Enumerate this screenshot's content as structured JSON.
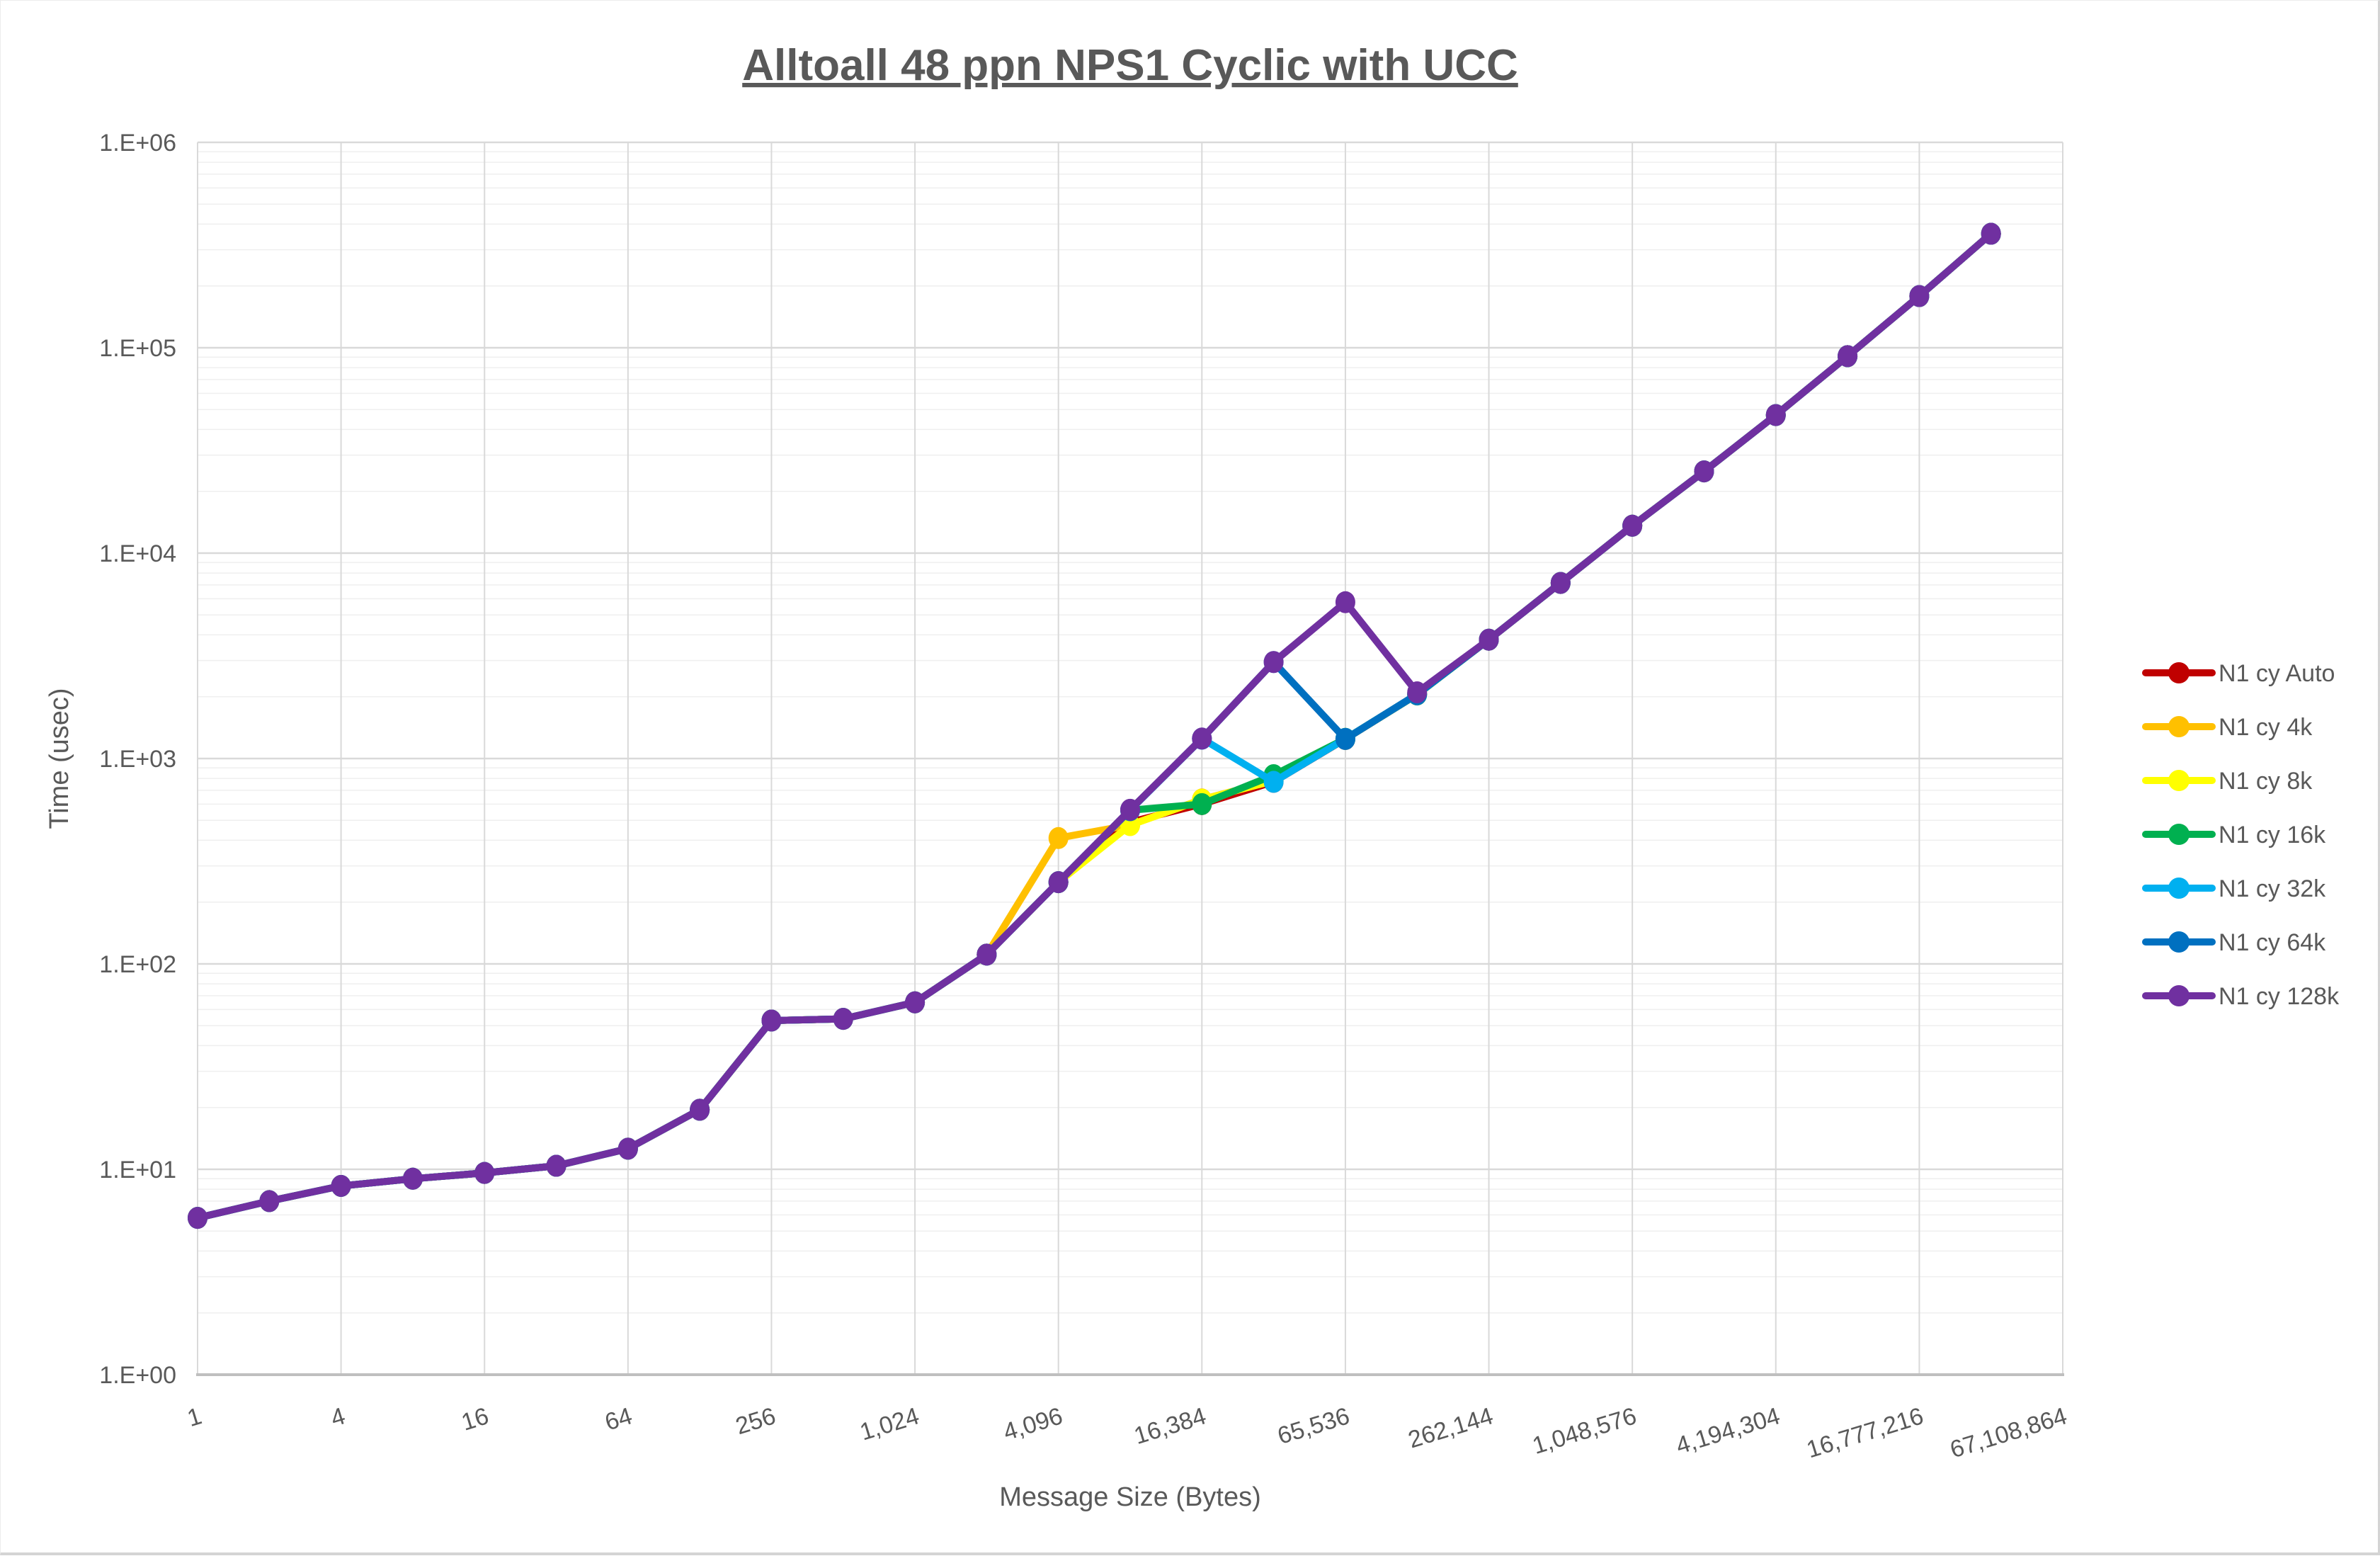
{
  "title": "Alltoall 48 ppn NPS1 Cyclic with UCC",
  "y_axis": {
    "title": "Time (usec)",
    "tick_labels": [
      "1.E+00",
      "1.E+01",
      "1.E+02",
      "1.E+03",
      "1.E+04",
      "1.E+05",
      "1.E+06"
    ]
  },
  "x_axis": {
    "title": "Message Size (Bytes)",
    "tick_labels": [
      "1",
      "4",
      "16",
      "64",
      "256",
      "1,024",
      "4,096",
      "16,384",
      "65,536",
      "262,144",
      "1,048,576",
      "4,194,304",
      "16,777,216",
      "67,108,864"
    ]
  },
  "legend": [
    {
      "label": "N1 cy Auto",
      "color": "#C00000"
    },
    {
      "label": "N1 cy 4k",
      "color": "#FFC000"
    },
    {
      "label": "N1 cy 8k",
      "color": "#FFFF00"
    },
    {
      "label": "N1 cy 16k",
      "color": "#00B050"
    },
    {
      "label": "N1 cy 32k",
      "color": "#00B0F0"
    },
    {
      "label": "N1 cy 64k",
      "color": "#0070C0"
    },
    {
      "label": "N1 cy 128k",
      "color": "#7030A0"
    }
  ],
  "colors": {
    "text": "#595959",
    "grid_major": "#d9d9d9",
    "grid_minor": "#efefef",
    "axis_line": "#bfbfbf"
  },
  "chart_data": {
    "type": "line",
    "title": "Alltoall 48 ppn NPS1 Cyclic with UCC",
    "xlabel": "Message Size (Bytes)",
    "ylabel": "Time (usec)",
    "x_scale": "log2-category",
    "y_scale": "log10",
    "ylim": [
      1,
      1000000
    ],
    "x_axis_last_category": 67108864,
    "grid": "major-and-log-minor",
    "legend_position": "right-outside",
    "sizes": [
      1,
      2,
      4,
      8,
      16,
      32,
      64,
      128,
      256,
      512,
      1024,
      2048,
      4096,
      8192,
      16384,
      32768,
      65536,
      131072,
      262144,
      524288,
      1048576,
      2097152,
      4194304,
      8388608,
      16777216,
      33554432
    ],
    "series": [
      {
        "name": "N1 cy Auto",
        "color": "#C00000",
        "values": [
          5.8,
          7,
          8.3,
          9,
          9.6,
          10.4,
          12.6,
          19.5,
          53,
          54,
          65,
          111,
          250,
          490,
          600,
          770,
          1245,
          2050,
          3790,
          7160,
          13600,
          25000,
          47000,
          91000,
          178500,
          359000
        ]
      },
      {
        "name": "N1 cy 4k",
        "color": "#FFC000",
        "values": [
          5.8,
          7,
          8.3,
          9,
          9.6,
          10.4,
          12.6,
          19.5,
          53,
          54,
          65,
          111,
          410,
          475,
          632,
          782,
          1246,
          2050,
          3790,
          7160,
          13600,
          25000,
          47000,
          91000,
          178500,
          359000
        ]
      },
      {
        "name": "N1 cy 8k",
        "color": "#FFFF00",
        "values": [
          5.8,
          7,
          8.3,
          9,
          9.6,
          10.4,
          12.6,
          19.5,
          53,
          54,
          65,
          111,
          250,
          474,
          630,
          780,
          1246,
          2050,
          3790,
          7160,
          13600,
          25000,
          47000,
          91000,
          178500,
          359000
        ]
      },
      {
        "name": "N1 cy 16k",
        "color": "#00B050",
        "values": [
          5.8,
          7,
          8.3,
          9,
          9.6,
          10.4,
          12.6,
          19.5,
          53,
          54,
          65,
          111,
          250,
          560,
          600,
          830,
          1247,
          2052,
          3790,
          7160,
          13600,
          25000,
          47000,
          91000,
          178500,
          359000
        ]
      },
      {
        "name": "N1 cy 32k",
        "color": "#00B0F0",
        "values": [
          5.8,
          7,
          8.3,
          9,
          9.6,
          10.4,
          12.6,
          19.5,
          53,
          54,
          65,
          111,
          250,
          561,
          1250,
          770,
          1247,
          2052,
          3790,
          7160,
          13600,
          25000,
          47000,
          91000,
          178500,
          359000
        ]
      },
      {
        "name": "N1 cy 64k",
        "color": "#0070C0",
        "values": [
          5.8,
          7,
          8.3,
          9,
          9.6,
          10.4,
          12.6,
          19.5,
          53,
          54,
          65,
          111,
          250,
          562,
          1250,
          2950,
          1245,
          2055,
          3790,
          7160,
          13600,
          25000,
          47000,
          91000,
          178500,
          359000
        ]
      },
      {
        "name": "N1 cy 128k",
        "color": "#7030A0",
        "values": [
          5.8,
          7,
          8.3,
          9,
          9.6,
          10.4,
          12.6,
          19.5,
          53,
          54,
          65,
          111,
          250,
          563,
          1251,
          2950,
          5770,
          2100,
          3790,
          7160,
          13600,
          25000,
          47000,
          91000,
          178500,
          359000
        ]
      }
    ]
  }
}
